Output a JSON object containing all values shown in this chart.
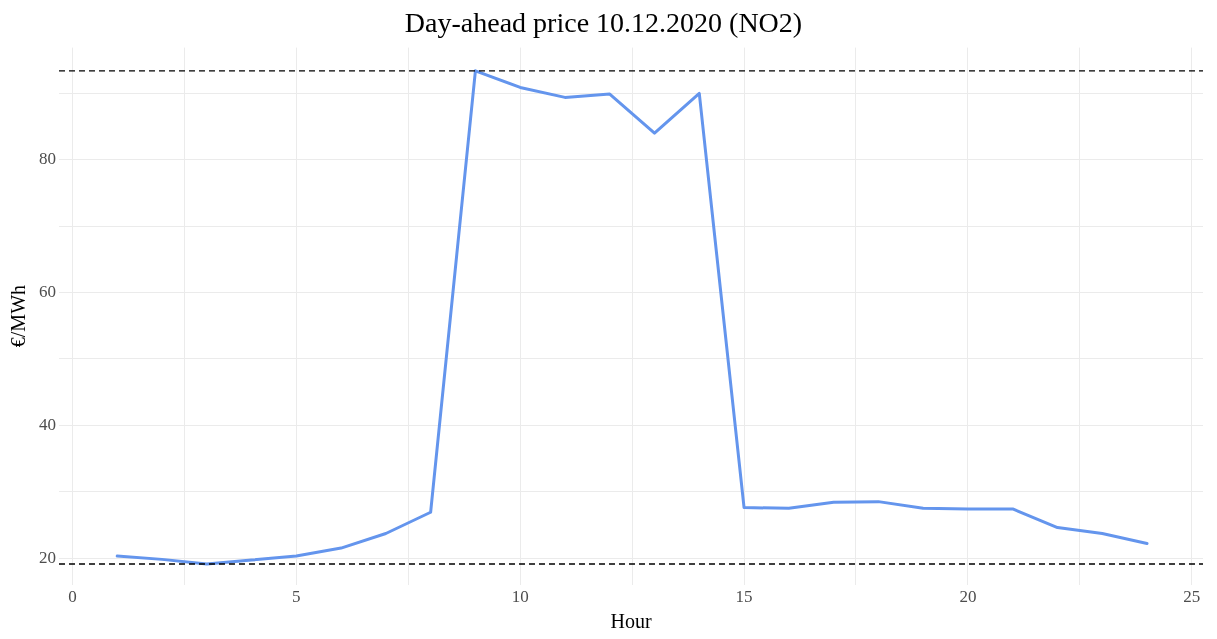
{
  "chart_data": {
    "type": "line",
    "title": "Day-ahead price 10.12.2020 (NO2)",
    "xlabel": "Hour",
    "ylabel": "€/MWh",
    "x": [
      1,
      2,
      3,
      4,
      5,
      6,
      7,
      8,
      9,
      10,
      11,
      12,
      13,
      14,
      15,
      16,
      17,
      18,
      19,
      20,
      21,
      22,
      23,
      24
    ],
    "series": [
      {
        "color": "#6495ed",
        "values": [
          20.3,
          19.8,
          19.1,
          19.7,
          20.3,
          21.5,
          23.7,
          26.9,
          93.4,
          90.9,
          89.4,
          89.9,
          84.0,
          90.0,
          27.6,
          27.5,
          28.4,
          28.5,
          27.5,
          27.4,
          27.4,
          24.6,
          23.7,
          22.2
        ]
      }
    ],
    "xlim": [
      -0.3,
      25.25
    ],
    "ylim": [
      16,
      96.9
    ],
    "xticks": [
      0,
      {
        "value": 2.5,
        "label": null
      },
      5,
      {
        "value": 7.5,
        "label": null
      },
      10,
      {
        "value": 12.5,
        "label": null
      },
      15,
      {
        "value": 17.5,
        "label": null
      },
      20,
      {
        "value": 22.5,
        "label": null
      },
      25
    ],
    "yticks": [
      20,
      {
        "value": 30,
        "label": null
      },
      40,
      {
        "value": 50,
        "label": null
      },
      60,
      {
        "value": 70,
        "label": null
      },
      80,
      {
        "value": 90,
        "label": null
      }
    ],
    "ref_lines": [
      {
        "axis": "y",
        "value": 93.4,
        "color": "#000000",
        "line_style": "dashed"
      },
      {
        "axis": "y",
        "value": 19.1,
        "color": "#000000",
        "line_style": "dashed"
      }
    ],
    "grid": true,
    "legend": false,
    "marker": "none",
    "line_style": "solid"
  }
}
